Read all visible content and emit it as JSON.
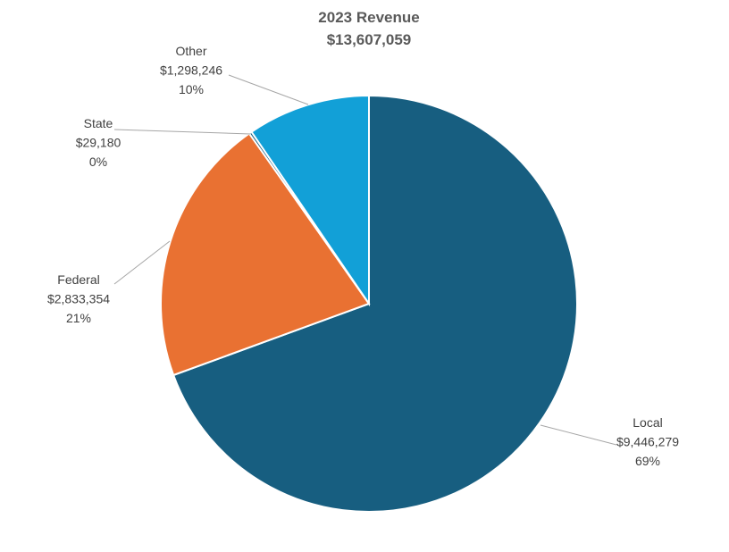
{
  "chart_data": {
    "type": "pie",
    "title": "2023 Revenue",
    "subtitle": "$13,607,059",
    "start_angle_deg": 0,
    "direction": "clockwise",
    "slices": [
      {
        "name": "Local",
        "value": 9446279,
        "value_label": "$9,446,279",
        "percent_label": "69%",
        "color": "#175e80"
      },
      {
        "name": "Federal",
        "value": 2833354,
        "value_label": "$2,833,354",
        "percent_label": "21%",
        "color": "#e97132"
      },
      {
        "name": "State",
        "value": 29180,
        "value_label": "$29,180",
        "percent_label": "0%",
        "color": "#156082"
      },
      {
        "name": "Other",
        "value": 1298246,
        "value_label": "$1,298,246",
        "percent_label": "10%",
        "color": "#12a0d7"
      }
    ]
  }
}
